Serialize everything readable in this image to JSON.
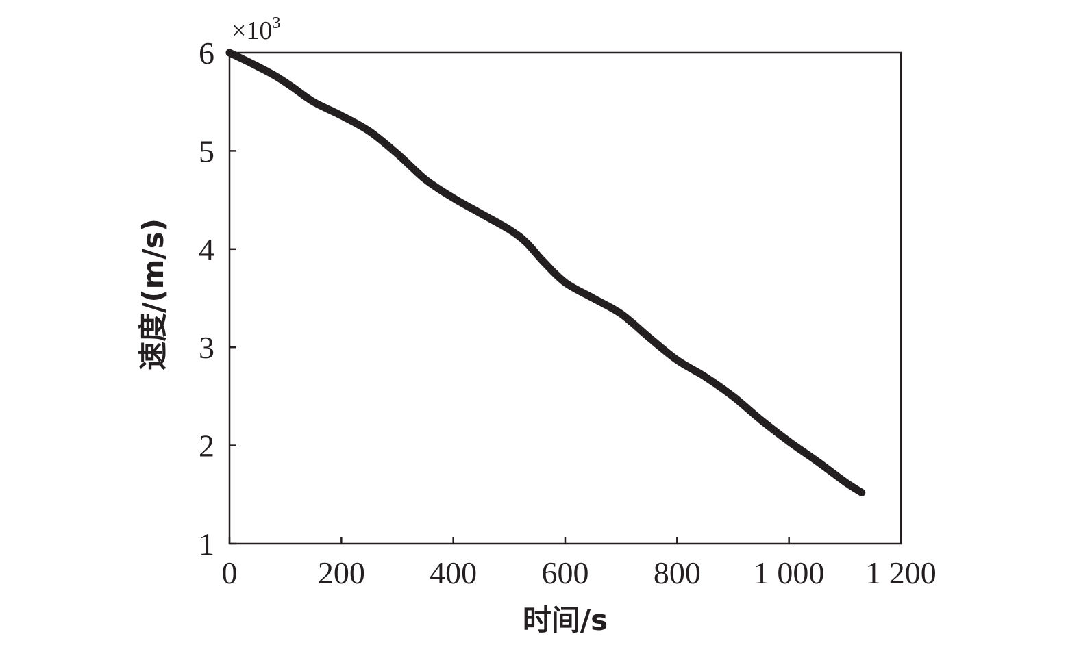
{
  "chart_data": {
    "type": "line",
    "title": "",
    "xlabel": "时间/s",
    "ylabel": "速度/(m/s)",
    "y_multiplier": "×10",
    "y_multiplier_exp": "3",
    "xlim": [
      0,
      1200
    ],
    "ylim": [
      1,
      6
    ],
    "xticks": [
      0,
      200,
      400,
      600,
      800,
      1000,
      1200
    ],
    "xtick_labels": [
      "0",
      "200",
      "400",
      "600",
      "800",
      "1 000",
      "1 200"
    ],
    "yticks": [
      1,
      2,
      3,
      4,
      5,
      6
    ],
    "ytick_labels": [
      "1",
      "2",
      "3",
      "4",
      "5",
      "6"
    ],
    "grid": false,
    "series": [
      {
        "color": "#231f20",
        "x": [
          0,
          40,
          80,
          110,
          150,
          200,
          250,
          300,
          350,
          400,
          450,
          500,
          530,
          560,
          600,
          650,
          700,
          750,
          800,
          850,
          900,
          950,
          1000,
          1050,
          1100,
          1130
        ],
        "y": [
          6.0,
          5.89,
          5.77,
          5.66,
          5.5,
          5.36,
          5.2,
          4.97,
          4.71,
          4.52,
          4.36,
          4.2,
          4.07,
          3.88,
          3.66,
          3.5,
          3.34,
          3.1,
          2.87,
          2.7,
          2.5,
          2.26,
          2.04,
          1.84,
          1.63,
          1.52
        ]
      }
    ]
  }
}
